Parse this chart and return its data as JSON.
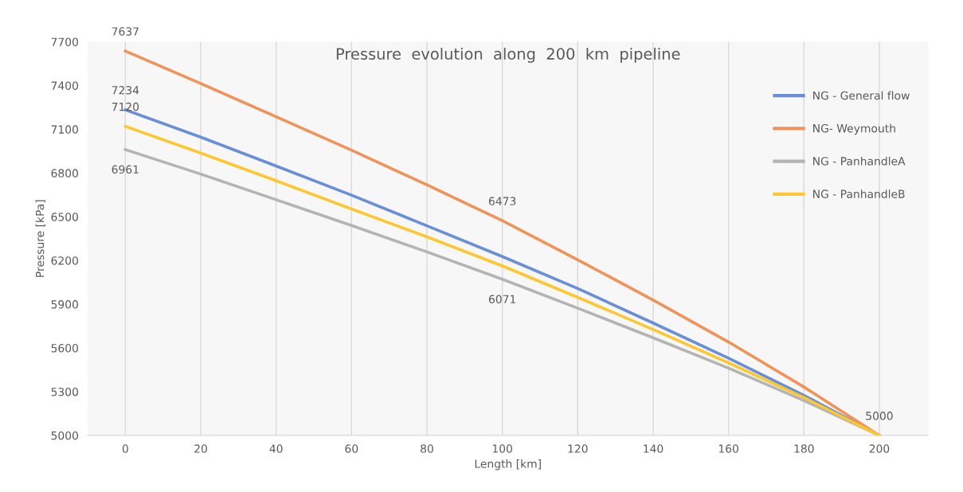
{
  "chart_data": {
    "type": "line",
    "title": "Pressure  evolution  along  200  km  pipeline",
    "xlabel": "Length [km]",
    "ylabel": "Pressure [kPa]",
    "x": [
      0,
      20,
      40,
      60,
      80,
      100,
      120,
      140,
      160,
      180,
      200
    ],
    "series": [
      {
        "name": "NG - General flow",
        "color": "#6b8fd6",
        "values": [
          7234,
          7046,
          6848,
          6648,
          6438,
          6227,
          6008,
          5771,
          5530,
          5275,
          5000
        ],
        "value_labels": [
          "7234",
          null,
          null,
          null,
          null,
          null,
          null,
          null,
          null,
          null,
          null
        ]
      },
      {
        "name": "NG- Weymouth",
        "color": "#f0935a",
        "values": [
          7637,
          7414,
          7186,
          6957,
          6719,
          6473,
          6205,
          5929,
          5641,
          5332,
          5000
        ],
        "value_labels": [
          "7637",
          null,
          null,
          null,
          null,
          "6473",
          null,
          null,
          null,
          null,
          "5000"
        ]
      },
      {
        "name": "NG - PanhandleA",
        "color": "#b4b4b4",
        "values": [
          6961,
          6793,
          6617,
          6440,
          6259,
          6071,
          5873,
          5670,
          5462,
          5239,
          5000
        ],
        "value_labels": [
          "6961",
          null,
          null,
          null,
          null,
          "6071",
          null,
          null,
          null,
          null,
          null
        ]
      },
      {
        "name": "NG - PanhandleB",
        "color": "#fdc731",
        "values": [
          7120,
          6937,
          6747,
          6553,
          6362,
          6163,
          5947,
          5727,
          5498,
          5260,
          5000
        ],
        "value_labels": [
          "7120",
          null,
          null,
          null,
          null,
          null,
          null,
          null,
          null,
          null,
          null
        ]
      }
    ],
    "xlim": [
      -10,
      213
    ],
    "xticks": [
      0,
      20,
      40,
      60,
      80,
      100,
      120,
      140,
      160,
      180,
      200
    ],
    "ylim": [
      5000,
      7700
    ],
    "yticks": [
      5000,
      5300,
      5600,
      5900,
      6200,
      6500,
      6800,
      7100,
      7400,
      7700
    ],
    "grid": "x",
    "legend": "top right",
    "marker": "none",
    "line_style": "solid"
  }
}
